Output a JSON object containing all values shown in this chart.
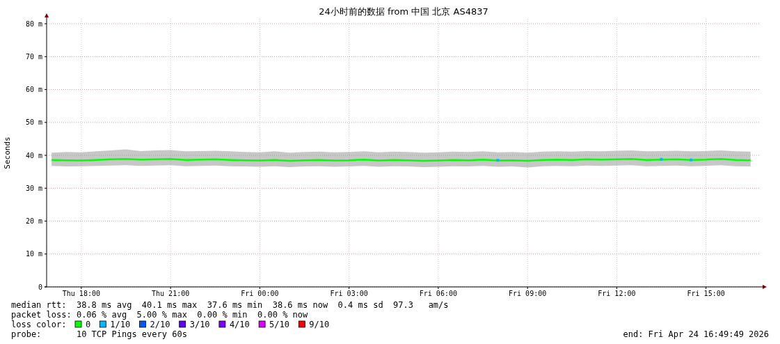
{
  "chart_data": {
    "type": "line",
    "title": "24小时前的数据 from 中国 北京 AS4837",
    "ylabel": "Seconds",
    "legend_title": "loss color:",
    "xlim": [
      "2026-04-23T16:50",
      "2026-04-24T16:50"
    ],
    "xticks": [
      {
        "value": "2026-04-23T18:00",
        "label": "Thu 18:00"
      },
      {
        "value": "2026-04-23T21:00",
        "label": "Thu 21:00"
      },
      {
        "value": "2026-04-24T00:00",
        "label": "Fri 00:00"
      },
      {
        "value": "2026-04-24T03:00",
        "label": "Fri 03:00"
      },
      {
        "value": "2026-04-24T06:00",
        "label": "Fri 06:00"
      },
      {
        "value": "2026-04-24T09:00",
        "label": "Fri 09:00"
      },
      {
        "value": "2026-04-24T12:00",
        "label": "Fri 12:00"
      },
      {
        "value": "2026-04-24T15:00",
        "label": "Fri 15:00"
      }
    ],
    "ylim": [
      0,
      81.5
    ],
    "yticks": [
      {
        "value": 0,
        "label": "0"
      },
      {
        "value": 10,
        "label": "10 m"
      },
      {
        "value": 20,
        "label": "20 m"
      },
      {
        "value": 30,
        "label": "30 m"
      },
      {
        "value": 40,
        "label": "40 m"
      },
      {
        "value": 50,
        "label": "50 m"
      },
      {
        "value": 60,
        "label": "60 m"
      },
      {
        "value": 70,
        "label": "70 m"
      },
      {
        "value": 80,
        "label": "80 m"
      }
    ],
    "grid": true,
    "legend": "bottom",
    "x": [
      "2026-04-23T17:00",
      "2026-04-23T17:30",
      "2026-04-23T18:00",
      "2026-04-23T18:30",
      "2026-04-23T19:00",
      "2026-04-23T19:30",
      "2026-04-23T20:00",
      "2026-04-23T20:30",
      "2026-04-23T21:00",
      "2026-04-23T21:30",
      "2026-04-23T22:00",
      "2026-04-23T22:30",
      "2026-04-23T23:00",
      "2026-04-23T23:30",
      "2026-04-24T00:00",
      "2026-04-24T00:30",
      "2026-04-24T01:00",
      "2026-04-24T01:30",
      "2026-04-24T02:00",
      "2026-04-24T02:30",
      "2026-04-24T03:00",
      "2026-04-24T03:30",
      "2026-04-24T04:00",
      "2026-04-24T04:30",
      "2026-04-24T05:00",
      "2026-04-24T05:30",
      "2026-04-24T06:00",
      "2026-04-24T06:30",
      "2026-04-24T07:00",
      "2026-04-24T07:30",
      "2026-04-24T08:00",
      "2026-04-24T08:30",
      "2026-04-24T09:00",
      "2026-04-24T09:30",
      "2026-04-24T10:00",
      "2026-04-24T10:30",
      "2026-04-24T11:00",
      "2026-04-24T11:30",
      "2026-04-24T12:00",
      "2026-04-24T12:30",
      "2026-04-24T13:00",
      "2026-04-24T13:30",
      "2026-04-24T14:00",
      "2026-04-24T14:30",
      "2026-04-24T15:00",
      "2026-04-24T15:30",
      "2026-04-24T16:00",
      "2026-04-24T16:30"
    ],
    "series": [
      {
        "name": "0",
        "color": "#00ff00",
        "values": [
          38.6,
          38.5,
          38.4,
          38.6,
          38.8,
          38.9,
          38.7,
          38.8,
          38.9,
          38.6,
          38.7,
          38.8,
          38.6,
          38.5,
          38.4,
          38.6,
          38.3,
          38.5,
          38.6,
          38.4,
          38.5,
          38.7,
          38.4,
          38.6,
          38.5,
          38.3,
          38.4,
          38.6,
          38.5,
          38.7,
          38.4,
          38.5,
          38.3,
          38.6,
          38.7,
          38.6,
          38.8,
          38.7,
          38.8,
          38.9,
          38.6,
          38.7,
          38.8,
          38.6,
          38.7,
          38.9,
          38.6,
          38.5
        ],
        "lower": [
          36.8,
          36.6,
          36.7,
          36.8,
          36.9,
          37.0,
          36.8,
          36.9,
          37.0,
          36.7,
          36.8,
          36.9,
          36.7,
          36.6,
          36.5,
          36.7,
          36.4,
          36.6,
          36.7,
          36.5,
          36.6,
          36.8,
          36.5,
          36.7,
          36.6,
          36.4,
          36.5,
          36.7,
          36.6,
          36.8,
          36.5,
          36.6,
          36.3,
          36.7,
          36.8,
          36.7,
          36.9,
          36.8,
          36.9,
          37.0,
          36.7,
          36.8,
          36.9,
          36.7,
          36.8,
          37.0,
          36.7,
          36.6
        ],
        "upper": [
          40.8,
          41.0,
          40.9,
          41.2,
          41.5,
          41.8,
          41.3,
          41.5,
          41.6,
          41.2,
          41.3,
          41.4,
          41.2,
          41.0,
          40.9,
          41.2,
          40.8,
          41.0,
          41.1,
          40.9,
          41.0,
          41.2,
          40.9,
          41.1,
          41.0,
          40.8,
          40.9,
          41.1,
          41.0,
          41.2,
          40.9,
          41.0,
          40.8,
          41.1,
          41.2,
          41.1,
          41.3,
          41.2,
          41.4,
          41.5,
          41.2,
          41.3,
          41.4,
          41.2,
          41.3,
          41.5,
          41.2,
          41.1
        ]
      },
      {
        "name": "1/10",
        "type": "scatter",
        "color": "#00b8ff",
        "x": [
          "2026-04-24T08:00",
          "2026-04-24T13:30",
          "2026-04-24T14:30"
        ],
        "values": [
          38.5,
          38.8,
          38.6
        ]
      },
      {
        "name": "2/10",
        "type": "scatter",
        "color": "#0059ff",
        "values": [
          null,
          null,
          null,
          null,
          null,
          null,
          null,
          null,
          null,
          null,
          null,
          null,
          null,
          null,
          null,
          null,
          null,
          null,
          null,
          null,
          null,
          null,
          null,
          null,
          null,
          null,
          null,
          null,
          null,
          null,
          null,
          null,
          null,
          null,
          null,
          null,
          null,
          null,
          null,
          null,
          null,
          null,
          null,
          null,
          null,
          null,
          null,
          null
        ]
      },
      {
        "name": "3/10",
        "type": "scatter",
        "color": "#5e00ff",
        "values": [
          null,
          null,
          null,
          null,
          null,
          null,
          null,
          null,
          null,
          null,
          null,
          null,
          null,
          null,
          null,
          null,
          null,
          null,
          null,
          null,
          null,
          null,
          null,
          null,
          null,
          null,
          null,
          null,
          null,
          null,
          null,
          null,
          null,
          null,
          null,
          null,
          null,
          null,
          null,
          null,
          null,
          null,
          null,
          null,
          null,
          null,
          null,
          null
        ]
      },
      {
        "name": "4/10",
        "type": "scatter",
        "color": "#7e00ff",
        "values": [
          null,
          null,
          null,
          null,
          null,
          null,
          null,
          null,
          null,
          null,
          null,
          null,
          null,
          null,
          null,
          null,
          null,
          null,
          null,
          null,
          null,
          null,
          null,
          null,
          null,
          null,
          null,
          null,
          null,
          null,
          null,
          null,
          null,
          null,
          null,
          null,
          null,
          null,
          null,
          null,
          null,
          null,
          null,
          null,
          null,
          null,
          null,
          null
        ]
      },
      {
        "name": "5/10",
        "type": "scatter",
        "color": "#dd00ff",
        "values": [
          null,
          null,
          null,
          null,
          null,
          null,
          null,
          null,
          null,
          null,
          null,
          null,
          null,
          null,
          null,
          null,
          null,
          null,
          null,
          null,
          null,
          null,
          null,
          null,
          null,
          null,
          null,
          null,
          null,
          null,
          null,
          null,
          null,
          null,
          null,
          null,
          null,
          null,
          null,
          null,
          null,
          null,
          null,
          null,
          null,
          null,
          null,
          null
        ]
      },
      {
        "name": "9/10",
        "type": "scatter",
        "color": "#ff0000",
        "values": [
          null,
          null,
          null,
          null,
          null,
          null,
          null,
          null,
          null,
          null,
          null,
          null,
          null,
          null,
          null,
          null,
          null,
          null,
          null,
          null,
          null,
          null,
          null,
          null,
          null,
          null,
          null,
          null,
          null,
          null,
          null,
          null,
          null,
          null,
          null,
          null,
          null,
          null,
          null,
          null,
          null,
          null,
          null,
          null,
          null,
          null,
          null,
          null
        ]
      }
    ],
    "annotations": [
      "median rtt:  38.8 ms avg  40.1 ms max  37.6 ms min  38.6 ms now  0.4 ms sd  97.3   am/s",
      "packet loss: 0.06 % avg  5.00 % max  0.00 % min  0.00 % now",
      "probe:       10 TCP Pings every 60s",
      "end: Fri Apr 24 16:49:49 2026"
    ]
  }
}
